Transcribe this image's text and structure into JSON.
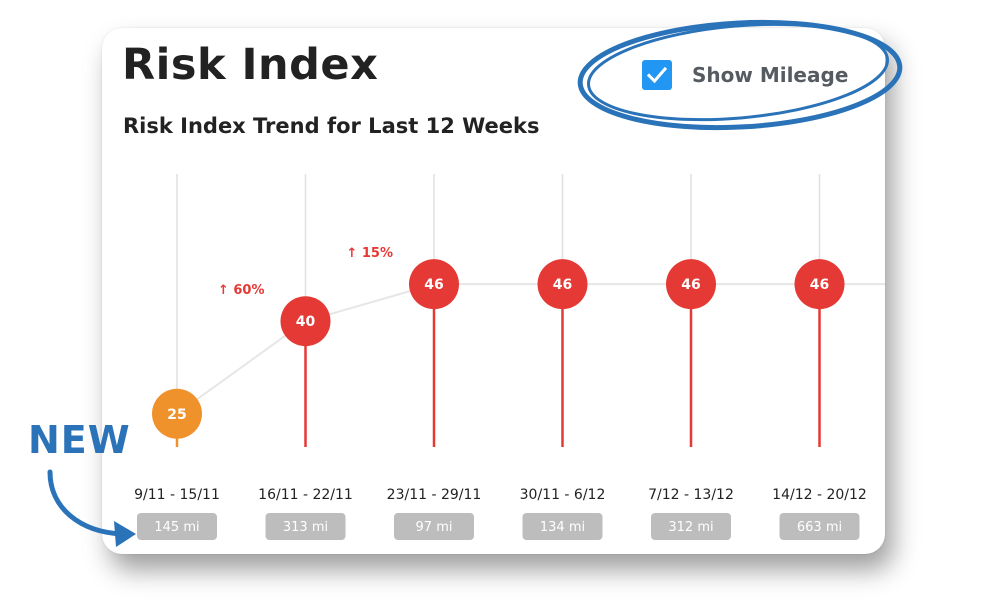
{
  "header": {
    "title": "Risk Index",
    "subtitle": "Risk Index Trend for Last 12 Weeks"
  },
  "mileage_toggle": {
    "label": "Show Mileage",
    "checked": true
  },
  "annotation": {
    "new_label": "NEW"
  },
  "colors": {
    "high_risk": "#e53935",
    "medium_risk": "#f0922c",
    "checkbox": "#2196f3",
    "mileage_pill": "#bdbdbd",
    "annotation": "#2a73b8"
  },
  "chart_data": {
    "type": "line",
    "categories": [
      "9/11 - 15/11",
      "16/11 - 22/11",
      "23/11 - 29/11",
      "30/11 - 6/12",
      "7/12 - 13/12",
      "14/12 - 20/12"
    ],
    "values": [
      25,
      40,
      46,
      46,
      46,
      46
    ],
    "value_colors": [
      "#f0922c",
      "#e53935",
      "#e53935",
      "#e53935",
      "#e53935",
      "#e53935"
    ],
    "mileage": [
      "145 mi",
      "313 mi",
      "97 mi",
      "134 mi",
      "312 mi",
      "663 mi"
    ],
    "changes": [
      {
        "between": [
          0,
          1
        ],
        "text": "60%",
        "direction": "up"
      },
      {
        "between": [
          1,
          2
        ],
        "text": "15%",
        "direction": "up"
      }
    ],
    "title": "Risk Index Trend for Last 12 Weeks",
    "ylim": [
      0,
      65
    ],
    "grid": "vertical"
  }
}
